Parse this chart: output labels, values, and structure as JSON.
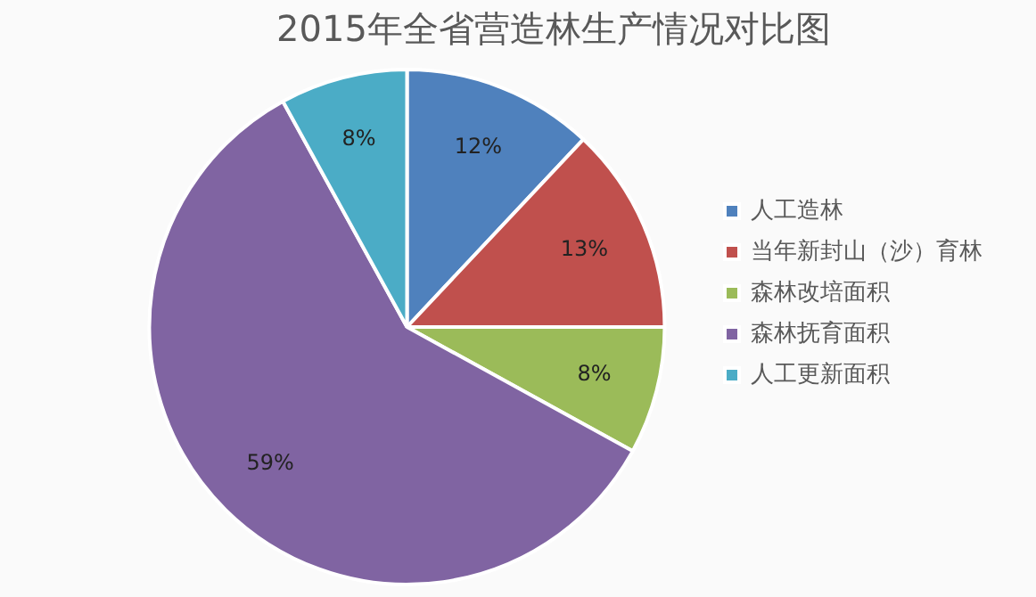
{
  "chart_data": {
    "type": "pie",
    "title": "2015年全省营造林生产情况对比图",
    "categories": [
      "人工造林",
      "当年新封山（沙）育林",
      "森林改培面积",
      "森林抚育面积",
      "人工更新面积"
    ],
    "values": [
      12,
      13,
      8,
      59,
      8
    ],
    "colors": [
      "#4f81bd",
      "#c0504d",
      "#9bbb59",
      "#8064a2",
      "#4bacc6"
    ],
    "value_labels": [
      "12%",
      "13%",
      "8%",
      "59%",
      "8%"
    ],
    "legend": "right"
  }
}
